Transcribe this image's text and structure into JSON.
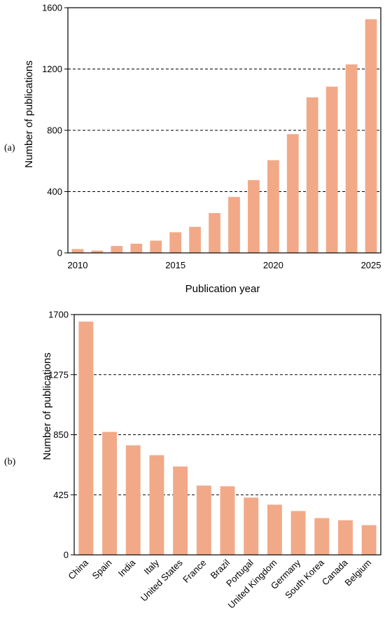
{
  "chart_data": [
    {
      "type": "bar",
      "panel_label": "(a)",
      "x": [
        2010,
        2011,
        2012,
        2013,
        2014,
        2015,
        2016,
        2017,
        2018,
        2019,
        2020,
        2021,
        2022,
        2023,
        2024,
        2025
      ],
      "values": [
        25,
        15,
        45,
        60,
        80,
        135,
        170,
        260,
        365,
        475,
        605,
        775,
        1015,
        1085,
        1230,
        1525
      ],
      "xticks": [
        "2010",
        "2015",
        "2020",
        "2025"
      ],
      "yticks": [
        "0",
        "400",
        "800",
        "1200",
        "1600"
      ],
      "ylim": [
        0,
        1600
      ],
      "xlabel": "Publication year",
      "ylabel": "Number of publications",
      "grid": "horizontal dashed",
      "color": "#f2a988"
    },
    {
      "type": "bar",
      "panel_label": "(b)",
      "categories": [
        "China",
        "Spain",
        "India",
        "Italy",
        "United States",
        "France",
        "Brazil",
        "Portugal",
        "United Kingdom",
        "Germany",
        "South Korea",
        "Canada",
        "Belgium"
      ],
      "values": [
        1650,
        870,
        775,
        705,
        625,
        490,
        485,
        405,
        355,
        310,
        260,
        245,
        210
      ],
      "yticks": [
        "0",
        "425",
        "850",
        "1275",
        "1700"
      ],
      "ylim": [
        0,
        1700
      ],
      "xlabel": "",
      "ylabel": "Number of publications",
      "grid": "horizontal dashed",
      "color": "#f2a988"
    }
  ]
}
